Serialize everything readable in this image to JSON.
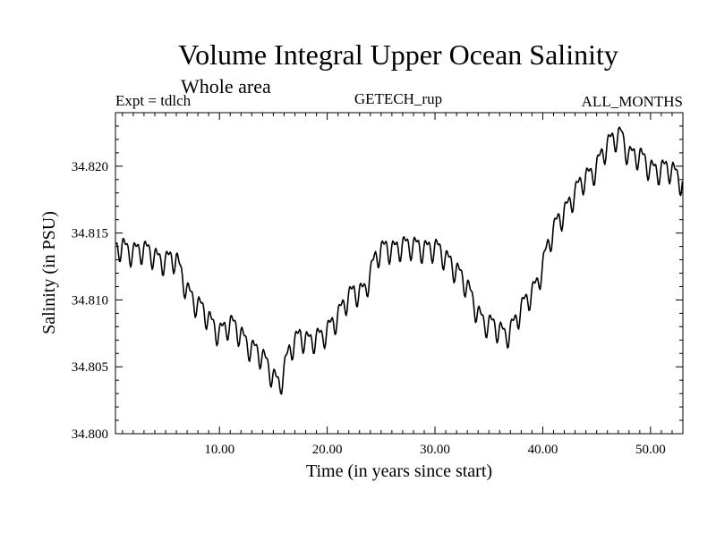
{
  "chart_data": {
    "type": "line",
    "title": "Volume Integral Upper Ocean Salinity",
    "subtitle": "Whole area",
    "header_left": "Expt = tdlch",
    "header_center": "GETECH_rup",
    "header_right": "ALL_MONTHS",
    "xlabel": "Time (in years since start)",
    "ylabel": "Salinity (in PSU)",
    "xlim": [
      0.35,
      53.0
    ],
    "ylim": [
      34.8,
      34.824
    ],
    "x_ticks": [
      10,
      20,
      30,
      40,
      50
    ],
    "x_tick_labels": [
      "10.00",
      "20.00",
      "30.00",
      "40.00",
      "50.00"
    ],
    "y_ticks": [
      34.8,
      34.805,
      34.81,
      34.815,
      34.82
    ],
    "y_tick_labels": [
      "34.800",
      "34.805",
      "34.810",
      "34.815",
      "34.820"
    ],
    "series": [
      {
        "name": "Salinity",
        "color": "#000000",
        "x": [
          0.4,
          1.0,
          2.0,
          3.0,
          4.0,
          5.0,
          6.0,
          7.0,
          8.0,
          9.0,
          10.0,
          11.0,
          12.0,
          13.0,
          14.0,
          15.0,
          15.6,
          16.5,
          17.5,
          18.5,
          19.5,
          20.5,
          21.5,
          22.5,
          23.5,
          24.5,
          25.5,
          26.5,
          27.5,
          28.5,
          29.5,
          30.5,
          31.5,
          32.5,
          33.5,
          34.5,
          35.5,
          36.5,
          37.5,
          38.5,
          39.5,
          40.5,
          41.5,
          42.5,
          43.5,
          44.5,
          45.5,
          46.5,
          47.3,
          48.0,
          49.0,
          50.0,
          51.0,
          52.0,
          53.0
        ],
        "y": [
          34.8135,
          34.814,
          34.8138,
          34.8135,
          34.8134,
          34.813,
          34.8128,
          34.811,
          34.8095,
          34.8085,
          34.8078,
          34.808,
          34.8075,
          34.8065,
          34.8055,
          34.8045,
          34.8038,
          34.806,
          34.8075,
          34.807,
          34.807,
          34.8085,
          34.8095,
          34.8105,
          34.811,
          34.813,
          34.814,
          34.814,
          34.8138,
          34.8142,
          34.8138,
          34.8135,
          34.813,
          34.8115,
          34.81,
          34.8085,
          34.8078,
          34.8075,
          34.8085,
          34.8098,
          34.8115,
          34.814,
          34.816,
          34.8175,
          34.8185,
          34.8195,
          34.821,
          34.8218,
          34.8225,
          34.821,
          34.8205,
          34.82,
          34.8198,
          34.8195,
          34.819
        ]
      }
    ]
  }
}
